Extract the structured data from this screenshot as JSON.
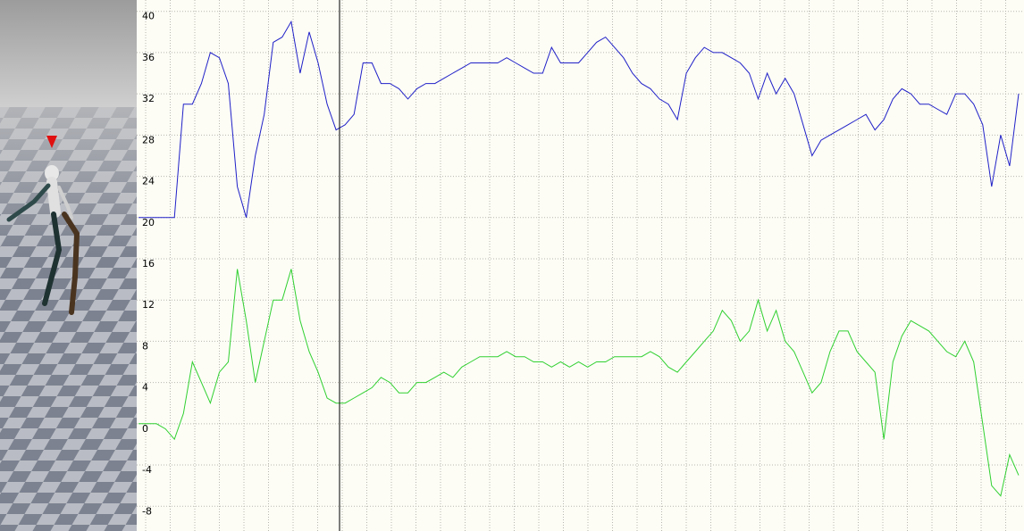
{
  "chart_data": {
    "type": "line",
    "ylim": [
      -10.4,
      41.1
    ],
    "yticks": [
      40,
      36,
      32,
      28,
      24,
      20,
      16,
      12,
      8,
      4,
      0,
      -4,
      -8
    ],
    "grid": true,
    "series": [
      {
        "color": "#2020c8",
        "values": [
          20,
          20,
          20,
          20,
          20,
          31,
          31,
          33,
          36,
          35.5,
          33,
          23,
          20,
          26,
          30,
          37,
          37.5,
          39,
          34,
          38,
          35,
          31,
          28.5,
          29,
          30,
          35,
          35,
          33,
          33,
          32.5,
          31.5,
          32.5,
          33,
          33,
          33.5,
          34,
          34.5,
          35,
          35,
          35,
          35,
          35.5,
          35,
          34.5,
          34,
          34,
          36.5,
          35,
          35,
          35,
          36,
          37,
          37.5,
          36.5,
          35.5,
          34,
          33,
          32.5,
          31.5,
          31,
          29.5,
          34,
          35.5,
          36.5,
          36,
          36,
          35.5,
          35,
          34,
          31.5,
          34,
          32,
          33.5,
          32,
          29,
          26,
          27.5,
          28,
          28.5,
          29,
          29.5,
          30,
          28.5,
          29.5,
          31.5,
          32.5,
          32,
          31,
          31,
          30.5,
          30,
          32,
          32,
          31,
          29,
          23,
          28,
          25,
          32
        ]
      },
      {
        "color": "#30d030",
        "values": [
          0,
          0,
          0,
          -0.5,
          -1.5,
          1,
          6,
          4,
          2,
          5,
          6,
          15,
          10,
          4,
          8,
          12,
          12,
          15,
          10,
          7,
          5,
          2.5,
          2,
          2,
          2.5,
          3,
          3.5,
          4.5,
          4,
          3,
          3,
          4,
          4,
          4.5,
          5,
          4.5,
          5.5,
          6,
          6.5,
          6.5,
          6.5,
          7,
          6.5,
          6.5,
          6,
          6,
          5.5,
          6,
          5.5,
          6,
          5.5,
          6,
          6,
          6.5,
          6.5,
          6.5,
          6.5,
          7,
          6.5,
          5.5,
          5,
          6,
          7,
          8,
          9,
          11,
          10,
          8,
          9,
          12,
          9,
          11,
          8,
          7,
          5,
          3,
          4,
          7,
          9,
          9,
          7,
          6,
          5,
          -1.5,
          6,
          8.5,
          10,
          9.5,
          9,
          8,
          7,
          6.5,
          8,
          6,
          0,
          -6,
          -7,
          -3,
          -5
        ]
      }
    ]
  }
}
